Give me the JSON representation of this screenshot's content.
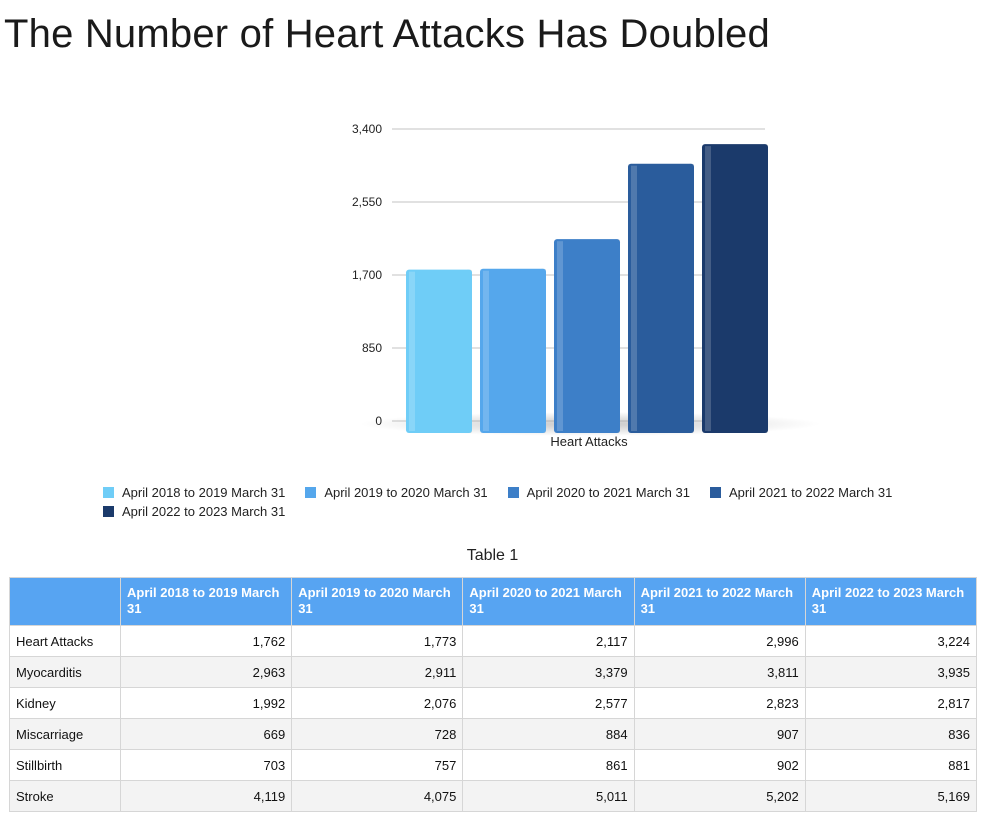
{
  "page_title": "The Number of Heart Attacks Has Doubled",
  "chart_data": {
    "type": "bar",
    "title": "",
    "categories": [
      "Heart Attacks"
    ],
    "series": [
      {
        "name": "April 2018 to 2019 March 31",
        "values": [
          1762
        ],
        "color": "#6fcdf7"
      },
      {
        "name": "April 2019 to 2020 March 31",
        "values": [
          1773
        ],
        "color": "#55a7ec"
      },
      {
        "name": "April 2020 to 2021 March 31",
        "values": [
          2117
        ],
        "color": "#3d7fc8"
      },
      {
        "name": "April 2021 to 2022 March 31",
        "values": [
          2996
        ],
        "color": "#2a5c9c"
      },
      {
        "name": "April 2022 to 2023 March 31",
        "values": [
          3224
        ],
        "color": "#1b3a6b"
      }
    ],
    "yticks": [
      "0",
      "850",
      "1,700",
      "2,550",
      "3,400"
    ],
    "ylim": [
      0,
      3400
    ],
    "xlabel": "",
    "ylabel": "",
    "grid": true,
    "legend_position": "bottom"
  },
  "table": {
    "caption": "Table 1",
    "headers": [
      "",
      "April 2018 to 2019 March 31",
      "April 2019 to 2020 March 31",
      "April 2020 to 2021 March 31",
      "April 2021 to 2022 March 31",
      "April 2022 to 2023 March 31"
    ],
    "rows": [
      {
        "label": "Heart Attacks",
        "values": [
          "1,762",
          "1,773",
          "2,117",
          "2,996",
          "3,224"
        ]
      },
      {
        "label": "Myocarditis",
        "values": [
          "2,963",
          "2,911",
          "3,379",
          "3,811",
          "3,935"
        ]
      },
      {
        "label": "Kidney",
        "values": [
          "1,992",
          "2,076",
          "2,577",
          "2,823",
          "2,817"
        ]
      },
      {
        "label": "Miscarriage",
        "values": [
          "669",
          "728",
          "884",
          "907",
          "836"
        ]
      },
      {
        "label": "Stillbirth",
        "values": [
          "703",
          "757",
          "861",
          "902",
          "881"
        ]
      },
      {
        "label": "Stroke",
        "values": [
          "4,119",
          "4,075",
          "5,011",
          "5,202",
          "5,169"
        ]
      }
    ]
  }
}
